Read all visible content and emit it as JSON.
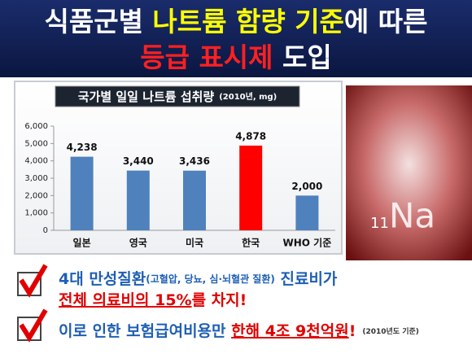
{
  "header": {
    "line1": [
      "식품군별 ",
      "나트륨 함량 기준",
      "에 따른"
    ],
    "line2": [
      "등급 표시제",
      " 도입"
    ]
  },
  "chart_data": {
    "type": "bar",
    "title": "국가별 일일 나트륨 섭취량",
    "title_note": "(2010년, mg)",
    "categories": [
      "일본",
      "영국",
      "미국",
      "한국",
      "WHO 기준"
    ],
    "values": [
      4238,
      3440,
      3436,
      4878,
      2000
    ],
    "value_labels": [
      "4,238",
      "3,440",
      "3,436",
      "4,878",
      "2,000"
    ],
    "colors": [
      "#4f81bd",
      "#4f81bd",
      "#4f81bd",
      "#ff0000",
      "#4f81bd"
    ],
    "ylim": [
      0,
      6000
    ],
    "yticks": [
      0,
      {
        "value": 1000,
        "label": "1,000"
      },
      {
        "value": 2000,
        "label": "2,000"
      },
      {
        "value": 3000,
        "label": "3,000"
      },
      {
        "value": 4000,
        "label": "4,000"
      },
      {
        "value": 5000,
        "label": "5,000"
      },
      {
        "value": 6000,
        "label": "6,000"
      }
    ]
  },
  "image": {
    "number": "11",
    "symbol": "Na"
  },
  "bullets": [
    [
      "4대 만성질환",
      "(고혈압, 당뇨, 심·뇌혈관 질환)",
      " 진료비가"
    ],
    [
      "전체 의료비의 15%",
      "를 차지!"
    ],
    [
      "이로 인한 보험급여비용만 ",
      "한해 4조 9천억원",
      "!",
      "(2010년도 기준)"
    ]
  ]
}
